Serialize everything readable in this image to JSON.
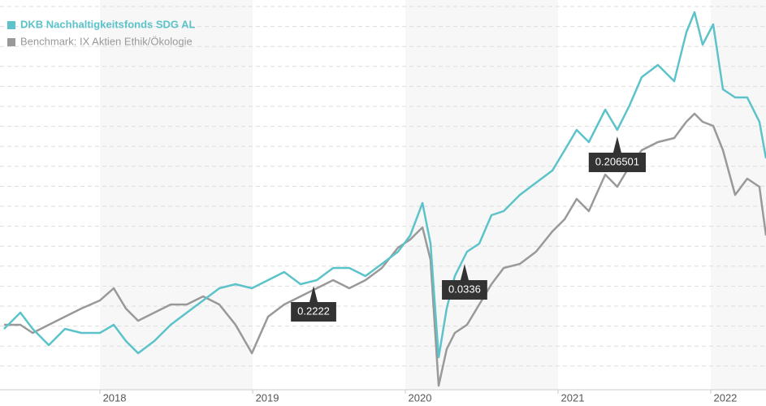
{
  "chart_data": {
    "type": "line",
    "xlim": [
      2017.372,
      2022.362
    ],
    "ylim": [
      0,
      480
    ],
    "xticks": [
      2018,
      2019,
      2020,
      2021,
      2022
    ],
    "x": [
      2017.372,
      2017.479,
      2017.559,
      2017.665,
      2017.771,
      2017.878,
      2018.0,
      2018.09,
      2018.17,
      2018.25,
      2018.356,
      2018.463,
      2018.569,
      2018.676,
      2018.782,
      2018.888,
      2018.995,
      2019.101,
      2019.207,
      2019.314,
      2019.42,
      2019.527,
      2019.633,
      2019.739,
      2019.846,
      2019.952,
      2020.032,
      2020.112,
      2020.165,
      2020.218,
      2020.271,
      2020.324,
      2020.404,
      2020.484,
      2020.564,
      2020.644,
      2020.75,
      2020.856,
      2020.963,
      2021.043,
      2021.122,
      2021.202,
      2021.309,
      2021.388,
      2021.468,
      2021.548,
      2021.654,
      2021.761,
      2021.84,
      2021.894,
      2021.947,
      2022.016,
      2022.08,
      2022.16,
      2022.239,
      2022.319,
      2022.362
    ],
    "series": [
      {
        "name": "DKB Nachhaltigkeitsfonds SDG AL",
        "color": "#5bc3c9",
        "values": [
          75,
          95,
          75,
          55,
          75,
          70,
          70,
          80,
          60,
          45,
          60,
          80,
          95,
          110,
          125,
          130,
          125,
          135,
          145,
          130,
          135,
          150,
          150,
          140,
          155,
          170,
          190,
          230,
          180,
          40,
          100,
          140,
          170,
          180,
          215,
          220,
          240,
          255,
          270,
          295,
          320,
          305,
          345,
          320,
          350,
          385,
          400,
          380,
          440,
          465,
          425,
          450,
          370,
          360,
          360,
          330,
          285
        ]
      },
      {
        "name": "Benchmark: IX Aktien Ethik/Ökologie",
        "color": "#999999",
        "values": [
          80,
          80,
          70,
          80,
          90,
          100,
          110,
          125,
          100,
          85,
          95,
          105,
          105,
          115,
          105,
          80,
          45,
          90,
          105,
          115,
          125,
          135,
          125,
          135,
          150,
          175,
          185,
          200,
          160,
          5,
          50,
          70,
          80,
          105,
          130,
          150,
          155,
          170,
          195,
          210,
          235,
          220,
          265,
          250,
          275,
          295,
          305,
          310,
          330,
          340,
          330,
          325,
          295,
          240,
          260,
          250,
          190
        ]
      }
    ],
    "annotations": [
      {
        "x": 2019.399,
        "y": 128,
        "text": "0.2222"
      },
      {
        "x": 2020.388,
        "y": 155,
        "text": "0.0336"
      },
      {
        "x": 2021.388,
        "y": 312,
        "text": "0.206501"
      }
    ]
  }
}
